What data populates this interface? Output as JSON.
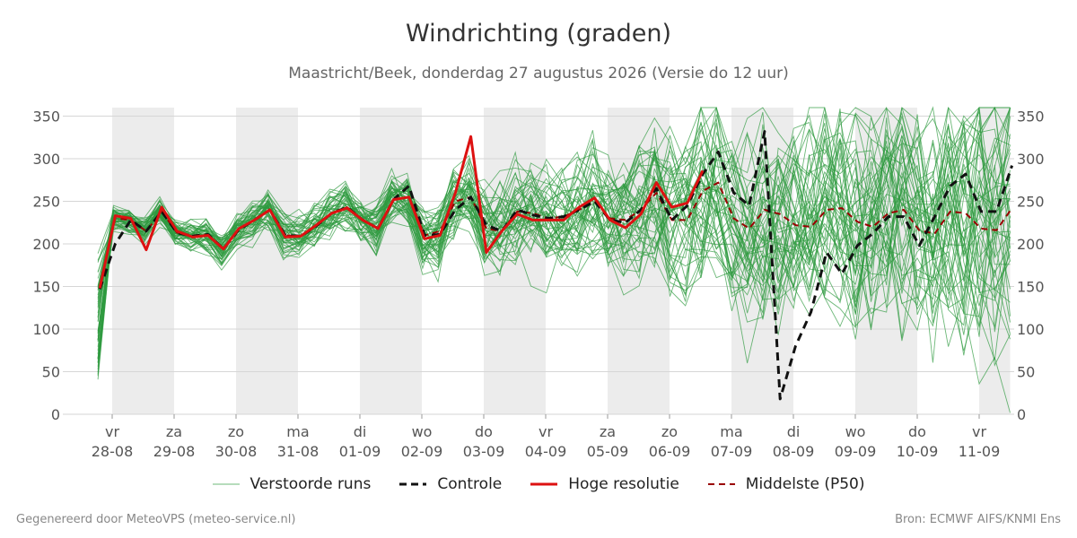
{
  "chart_data": {
    "type": "line",
    "title": "Windrichting (graden)",
    "subtitle": "Maastricht/Beek, donderdag 27 augustus 2026 (Versie do 12 uur)",
    "xlabel": "",
    "ylabel": "",
    "ylim": [
      0,
      360
    ],
    "yticks": [
      0,
      50,
      100,
      150,
      200,
      250,
      300,
      350
    ],
    "grid": true,
    "legend_position": "bottom",
    "x_range": [
      -0.23,
      14.5
    ],
    "weekend_shading": [
      [
        0,
        1
      ],
      [
        2,
        3
      ],
      [
        4,
        5
      ],
      [
        6,
        7
      ],
      [
        8,
        9
      ],
      [
        10,
        11
      ],
      [
        12,
        13
      ],
      [
        14,
        14.5
      ]
    ],
    "day_ticks": [
      {
        "day": "vr",
        "date": "28-08"
      },
      {
        "day": "za",
        "date": "29-08"
      },
      {
        "day": "zo",
        "date": "30-08"
      },
      {
        "day": "ma",
        "date": "31-08"
      },
      {
        "day": "di",
        "date": "01-09"
      },
      {
        "day": "wo",
        "date": "02-09"
      },
      {
        "day": "do",
        "date": "03-09"
      },
      {
        "day": "vr",
        "date": "04-09"
      },
      {
        "day": "za",
        "date": "05-09"
      },
      {
        "day": "zo",
        "date": "06-09"
      },
      {
        "day": "ma",
        "date": "07-09"
      },
      {
        "day": "di",
        "date": "08-09"
      },
      {
        "day": "wo",
        "date": "09-09"
      },
      {
        "day": "do",
        "date": "10-09"
      },
      {
        "day": "vr",
        "date": "11-09"
      }
    ],
    "series": [
      {
        "name": "Controle",
        "color": "#111111",
        "dash": true,
        "values": [
          147,
          200,
          228,
          215,
          238,
          213,
          209,
          211,
          194,
          217,
          228,
          240,
          210,
          209,
          221,
          236,
          243,
          228,
          218,
          252,
          268,
          210,
          211,
          240,
          255,
          222,
          215,
          240,
          234,
          230,
          232,
          240,
          250,
          228,
          225,
          240,
          265,
          228,
          245,
          282,
          308,
          260,
          245,
          332,
          18,
          80,
          120,
          190,
          165,
          198,
          212,
          232,
          232,
          198,
          232,
          268,
          282,
          238,
          238,
          292
        ]
      },
      {
        "name": "Hoge resolutie",
        "color": "#dd1111",
        "dash": false,
        "values": [
          148,
          233,
          230,
          193,
          243,
          215,
          208,
          210,
          194,
          218,
          228,
          240,
          208,
          209,
          222,
          236,
          242,
          228,
          218,
          252,
          255,
          206,
          210,
          260,
          326,
          190,
          215,
          235,
          228,
          228,
          228,
          243,
          254,
          228,
          219,
          235,
          272,
          243,
          248,
          286
        ]
      },
      {
        "name": "Middelste (P50)",
        "color": "#990000",
        "dash": true,
        "values": [
          150,
          230,
          228,
          215,
          238,
          213,
          210,
          211,
          194,
          217,
          228,
          240,
          210,
          209,
          221,
          236,
          243,
          228,
          218,
          252,
          255,
          210,
          215,
          250,
          255,
          218,
          215,
          238,
          236,
          230,
          232,
          240,
          250,
          230,
          228,
          240,
          260,
          228,
          228,
          262,
          272,
          230,
          218,
          240,
          235,
          222,
          220,
          240,
          242,
          226,
          220,
          236,
          240,
          216,
          212,
          238,
          236,
          218,
          216,
          242
        ]
      }
    ],
    "ensemble": {
      "name": "Verstoorde runs",
      "color": "#2e9a3e",
      "members": 50
    }
  },
  "legend": {
    "items": [
      {
        "label": "Verstoorde runs"
      },
      {
        "label": "Controle"
      },
      {
        "label": "Hoge resolutie"
      },
      {
        "label": "Middelste (P50)"
      }
    ]
  },
  "footer": {
    "left": "Gegenereerd door MeteoVPS (meteo-service.nl)",
    "right": "Bron: ECMWF AIFS/KNMI Ens"
  }
}
